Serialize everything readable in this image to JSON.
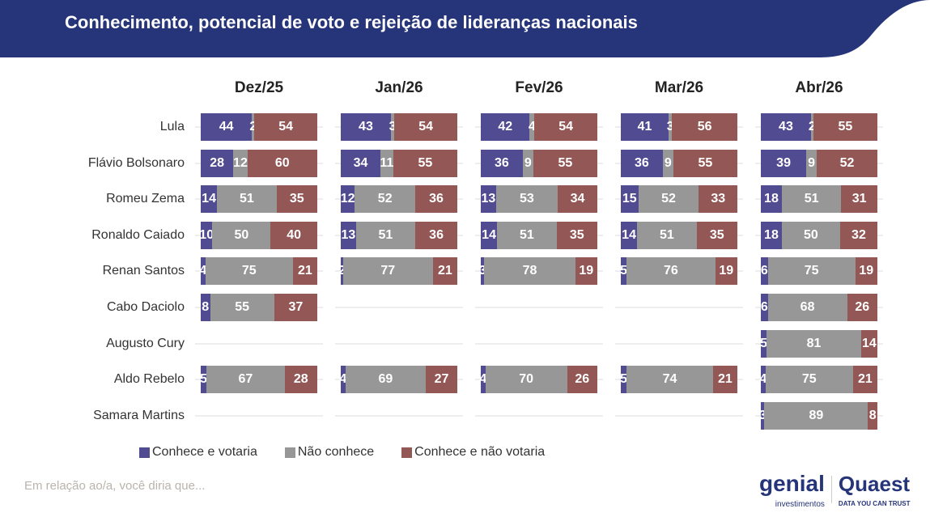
{
  "title": "Conhecimento, potencial de voto e rejeição de lideranças nacionais",
  "colors": {
    "header": "#263479",
    "Conhece e votaria": "#514b91",
    "Não conhece": "#979797",
    "Conhece e não votaria": "#935855"
  },
  "chart_data": {
    "type": "bar",
    "stacked": true,
    "orientation": "horizontal",
    "xlim": [
      0,
      100
    ],
    "panels": [
      "Dez/25",
      "Jan/26",
      "Fev/26",
      "Mar/26",
      "Abr/26"
    ],
    "categories": [
      "Lula",
      "Flávio Bolsonaro",
      "Romeu Zema",
      "Ronaldo Caiado",
      "Renan Santos",
      "Cabo Daciolo",
      "Augusto Cury",
      "Aldo Rebelo",
      "Samara Martins"
    ],
    "series_names": [
      "Conhece e votaria",
      "Não conhece",
      "Conhece e não votaria"
    ],
    "values": [
      [
        [
          44,
          2,
          54
        ],
        [
          43,
          3,
          54
        ],
        [
          42,
          4,
          54
        ],
        [
          41,
          3,
          56
        ],
        [
          43,
          2,
          55
        ]
      ],
      [
        [
          28,
          12,
          60
        ],
        [
          34,
          11,
          55
        ],
        [
          36,
          9,
          55
        ],
        [
          36,
          9,
          55
        ],
        [
          39,
          9,
          52
        ]
      ],
      [
        [
          14,
          51,
          35
        ],
        [
          12,
          52,
          36
        ],
        [
          13,
          53,
          34
        ],
        [
          15,
          52,
          33
        ],
        [
          18,
          51,
          31
        ]
      ],
      [
        [
          10,
          50,
          40
        ],
        [
          13,
          51,
          36
        ],
        [
          14,
          51,
          35
        ],
        [
          14,
          51,
          35
        ],
        [
          18,
          50,
          32
        ]
      ],
      [
        [
          4,
          75,
          21
        ],
        [
          2,
          77,
          21
        ],
        [
          3,
          78,
          19
        ],
        [
          5,
          76,
          19
        ],
        [
          6,
          75,
          19
        ]
      ],
      [
        [
          8,
          55,
          37
        ],
        null,
        null,
        null,
        [
          6,
          68,
          26
        ]
      ],
      [
        null,
        null,
        null,
        null,
        [
          5,
          81,
          14
        ]
      ],
      [
        [
          5,
          67,
          28
        ],
        [
          4,
          69,
          27
        ],
        [
          4,
          70,
          26
        ],
        [
          5,
          74,
          21
        ],
        [
          4,
          75,
          21
        ]
      ],
      [
        null,
        null,
        null,
        null,
        [
          3,
          89,
          8
        ]
      ]
    ],
    "legend": [
      "Conhece e votaria",
      "Não conhece",
      "Conhece e não votaria"
    ],
    "legend_position": "bottom-left"
  },
  "footnote": "Em relação ao/a, você diria que...",
  "logos": {
    "genial": "genial",
    "genial_sub": "investimentos",
    "quaest": "Quaest",
    "quaest_sub": "DATA YOU CAN TRUST"
  }
}
